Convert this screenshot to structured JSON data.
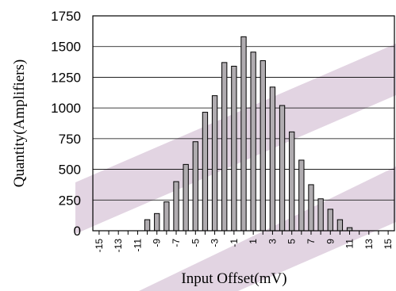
{
  "chart_data": {
    "type": "bar",
    "title": "",
    "xlabel": "Input Offset(mV)",
    "ylabel": "Quantity(Amplifiers)",
    "ylim": [
      0,
      1750
    ],
    "yticks": [
      0,
      250,
      500,
      750,
      1000,
      1250,
      1500,
      1750
    ],
    "xtick_labels": [
      "-15",
      "-13",
      "-11",
      "-9",
      "-7",
      "-5",
      "-3",
      "-1",
      "1",
      "3",
      "5",
      "7",
      "9",
      "11",
      "13",
      "15"
    ],
    "categories": [
      -15,
      -14,
      -13,
      -12,
      -11,
      -10,
      -9,
      -8,
      -7,
      -6,
      -5,
      -4,
      -3,
      -2,
      -1,
      0,
      1,
      2,
      3,
      4,
      5,
      6,
      7,
      8,
      9,
      10,
      11,
      12,
      13,
      14,
      15
    ],
    "values": [
      0,
      0,
      0,
      0,
      0,
      90,
      140,
      235,
      400,
      540,
      725,
      965,
      1100,
      1370,
      1340,
      1580,
      1455,
      1385,
      1170,
      1020,
      805,
      575,
      375,
      260,
      175,
      90,
      25,
      0,
      0,
      0,
      0
    ],
    "grid": true,
    "bar_color": "#b0acb0",
    "watermark_color": "#e2d4e2"
  }
}
